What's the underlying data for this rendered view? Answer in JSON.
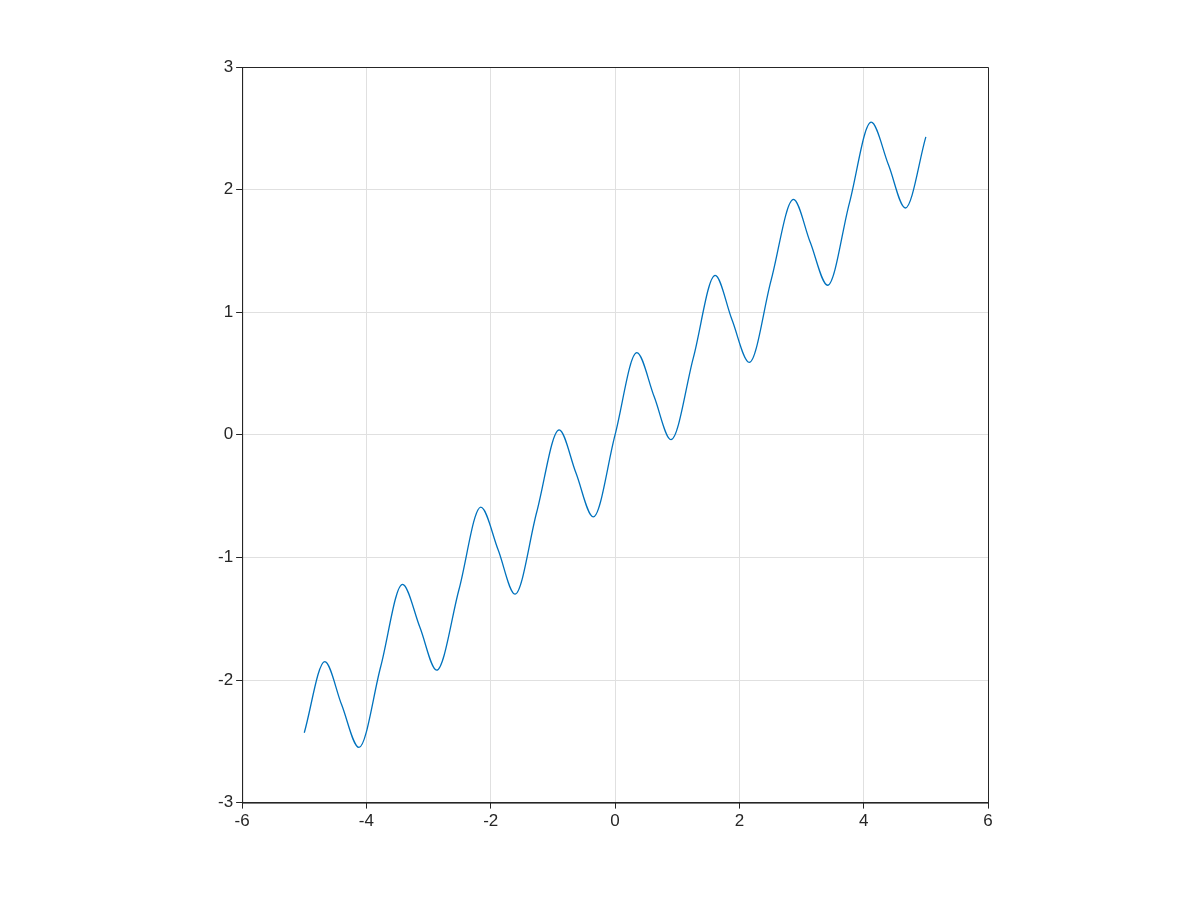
{
  "chart_data": {
    "type": "line",
    "x": [
      -5,
      -4.67,
      -4.4,
      -4.12,
      -3.77,
      -3.42,
      -3.14,
      -2.87,
      -2.51,
      -2.16,
      -1.88,
      -1.61,
      -1.26,
      -0.9,
      -0.63,
      -0.35,
      0,
      0.35,
      0.63,
      0.9,
      1.26,
      1.61,
      1.88,
      2.16,
      2.51,
      2.87,
      3.14,
      3.42,
      3.77,
      4.12,
      4.4,
      4.67,
      5
    ],
    "series": [
      {
        "color": "#0072bd",
        "values": [
          -2.43,
          -1.85,
          -2.2,
          -2.55,
          -1.89,
          -1.22,
          -1.57,
          -1.92,
          -1.26,
          -0.59,
          -0.94,
          -1.3,
          -0.63,
          0.04,
          -0.31,
          -0.67,
          0,
          0.67,
          0.31,
          -0.04,
          0.63,
          1.3,
          0.94,
          0.59,
          1.26,
          1.92,
          1.57,
          1.22,
          1.89,
          2.55,
          2.2,
          1.85,
          2.43
        ]
      }
    ],
    "xlim": [
      -6,
      6
    ],
    "xticks": [
      -6,
      -4,
      -2,
      0,
      2,
      4,
      6
    ],
    "ylim": [
      -3,
      3
    ],
    "yticks": [
      -3,
      -2,
      -1,
      0,
      1,
      2,
      3
    ],
    "grid": true,
    "legend": false,
    "marker": "none",
    "line_style": "solid"
  }
}
